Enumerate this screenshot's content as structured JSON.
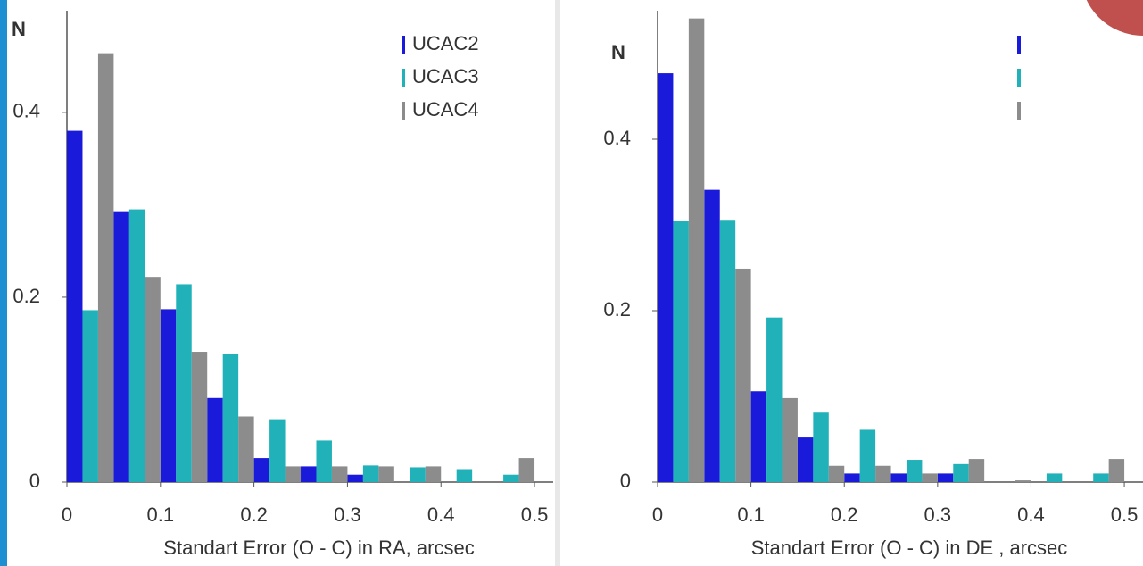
{
  "chart_data": [
    {
      "type": "histogram",
      "y_label": "N",
      "x_label": "Standart Error  (O - C) in RA, arcsec",
      "bins": [
        0,
        0.05,
        0.1,
        0.15,
        0.2,
        0.25,
        0.3,
        0.35,
        0.4,
        0.45,
        0.5
      ],
      "series": [
        {
          "name": "UCAC2",
          "color": "#1a1adb",
          "values": [
            0.38,
            0.293,
            0.187,
            0.091,
            0.026,
            0.017,
            0.008,
            0,
            0,
            0
          ]
        },
        {
          "name": "UCAC3",
          "color": "#20b2b8",
          "values": [
            0.186,
            0.295,
            0.214,
            0.139,
            0.068,
            0.045,
            0.018,
            0.016,
            0.014,
            0.008
          ]
        },
        {
          "name": "UCAC4",
          "color": "#8c8c8c",
          "values": [
            0.464,
            0.222,
            0.141,
            0.071,
            0.017,
            0.017,
            0.017,
            0.017,
            0,
            0.026
          ]
        }
      ],
      "xlim": [
        0,
        0.52
      ],
      "ylim": [
        0,
        0.51
      ],
      "xticks": [
        0,
        0.1,
        0.2,
        0.3,
        0.4,
        0.5
      ],
      "yticks": [
        0,
        0.2,
        0.4
      ]
    },
    {
      "type": "histogram",
      "y_label": "N",
      "x_label": "Standart Error  (O - C) in DE , arcsec",
      "bins": [
        0,
        0.05,
        0.1,
        0.15,
        0.2,
        0.25,
        0.3,
        0.35,
        0.4,
        0.45,
        0.5
      ],
      "series": [
        {
          "color": "#1a1adb",
          "values": [
            0.477,
            0.341,
            0.106,
            0.052,
            0.01,
            0.01,
            0.01,
            0,
            0,
            0
          ]
        },
        {
          "color": "#20b2b8",
          "values": [
            0.305,
            0.306,
            0.192,
            0.081,
            0.061,
            0.026,
            0.021,
            0,
            0.01,
            0.01
          ]
        },
        {
          "color": "#8c8c8c",
          "values": [
            0.541,
            0.249,
            0.098,
            0.019,
            0.019,
            0.01,
            0.027,
            0.002,
            0,
            0.027
          ]
        }
      ],
      "xlim": [
        0,
        0.52
      ],
      "ylim": [
        0,
        0.55
      ],
      "xticks": [
        0,
        0.1,
        0.2,
        0.3,
        0.4,
        0.5
      ],
      "yticks": [
        0,
        0.2,
        0.4
      ]
    }
  ]
}
